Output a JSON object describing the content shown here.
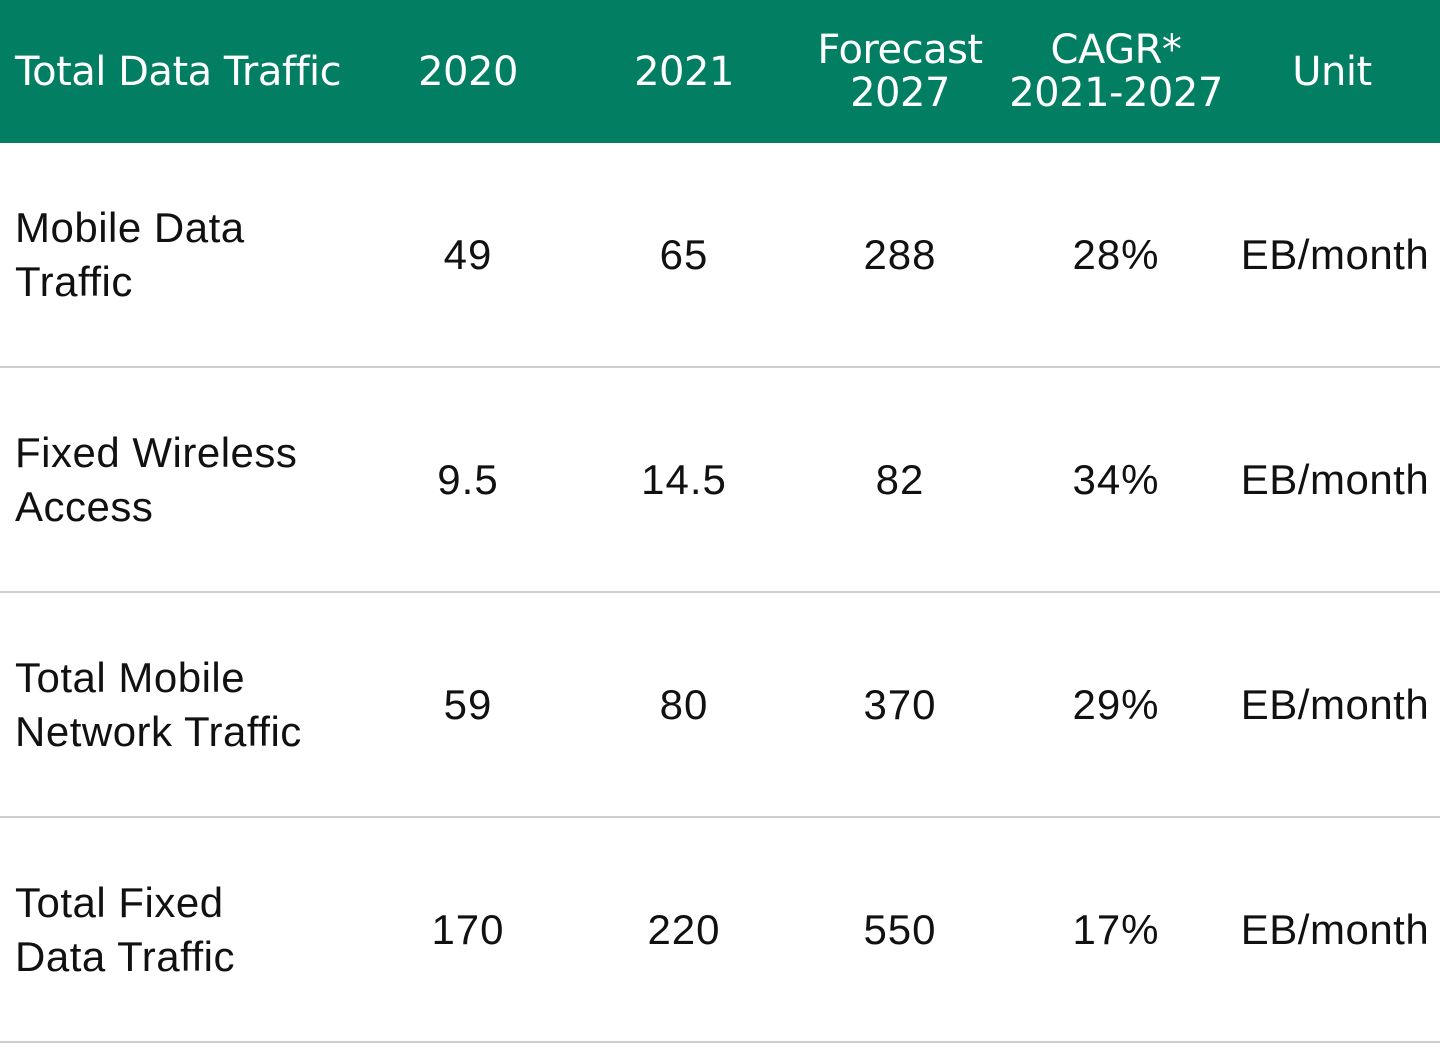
{
  "header": {
    "col_label": "Total Data Traffic",
    "col_2020": "2020",
    "col_2021": "2021",
    "col_forecast_line1": "Forecast",
    "col_forecast_line2": "2027",
    "col_cagr_line1": "CAGR*",
    "col_cagr_line2": "2021-2027",
    "col_unit": "Unit"
  },
  "colors": {
    "header_bg": "#027f62",
    "header_text": "#ffffff",
    "divider": "#cfcfcf"
  },
  "rows": [
    {
      "label": "Mobile Data\nTraffic",
      "v2020": "49",
      "v2021": "65",
      "forecast2027": "288",
      "cagr": "28%",
      "unit": "EB/month"
    },
    {
      "label": "Fixed Wireless\nAccess",
      "v2020": "9.5",
      "v2021": "14.5",
      "forecast2027": "82",
      "cagr": "34%",
      "unit": "EB/month"
    },
    {
      "label": "Total Mobile\nNetwork Traffic",
      "v2020": "59",
      "v2021": "80",
      "forecast2027": "370",
      "cagr": "29%",
      "unit": "EB/month"
    },
    {
      "label": "Total Fixed\nData Traffic",
      "v2020": "170",
      "v2021": "220",
      "forecast2027": "550",
      "cagr": "17%",
      "unit": "EB/month"
    }
  ]
}
